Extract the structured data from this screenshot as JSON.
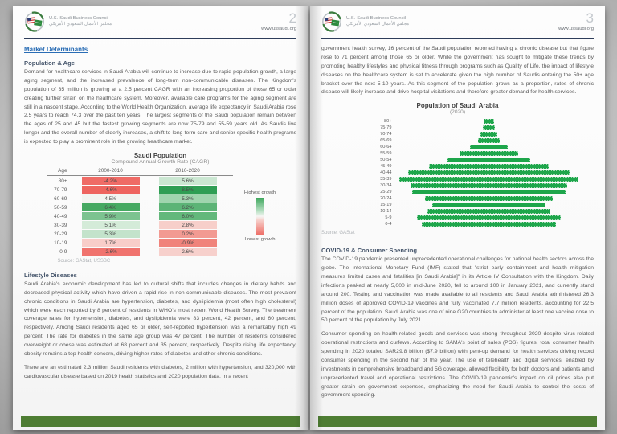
{
  "brand": {
    "org": "U.S.-Saudi Business Council",
    "org_ar": "مجلس الأعمال السعودي الأمريكي",
    "site": "www.ussaudi.org",
    "accent_green": "#4e7d33",
    "accent_navy": "#2e3d5a"
  },
  "page_left": {
    "number": "2",
    "link_heading": "Market Determinants",
    "pop_age": {
      "heading": "Population & Age",
      "body": "Demand for healthcare services in Saudi Arabia will continue to increase due to rapid population growth, a large aging segment, and the increased prevalence of long-term non-communicable diseases. The Kingdom's population of 35 million is growing at a 2.5 percent CAGR with an increasing proportion of those 65 or older creating further strain on the healthcare system. Moreover, available care programs for the aging segment are still in a nascent stage. According to the World Health Organization, average life expectancy in Saudi Arabia rose 2.5 years to reach 74.3 over the past ten years. The largest segments of the Saudi population remain between the ages of 25 and 45 but the fastest growing segments are now 75-79 and 55-59 years old. As Saudis live longer and the overall number of elderly increases, a shift to long-term care and senior-specific health programs is expected to play a prominent role in the growing healthcare market."
    },
    "lifestyle": {
      "heading": "Lifestyle Diseases",
      "body": "Saudi Arabia's economic development has led to cultural shifts that includes changes in dietary habits and decreased physical activity which have driven a rapid rise in non-communicable diseases. The most prevalent chronic conditions in Saudi Arabia are hypertension, diabetes, and dyslipidemia (most often high cholesterol) which were each reported by 8 percent of residents in WHO's most recent World Health Survey. The treatment coverage rates for hypertension, diabetes, and dyslipidemia were 83 percent, 42 percent, and 60 percent, respectively. Among Saudi residents aged 65 or older, self-reported hypertension was a remarkably high 49 percent. The rate for diabetes in the same age group was 47 percent. The number of residents considered overweight or obese was estimated at 68 percent and 35 percent, respectively. Despite rising life expectancy, obesity remains a top health concern, driving higher rates of diabetes and other chronic conditions.",
      "body2": "There are an estimated 2.3 million Saudi residents with diabetes, 2 million with hypertension, and 320,000 with cardiovascular disease based on 2019 health statistics and 2020 population data. In a recent"
    }
  },
  "page_right": {
    "number": "3",
    "cont_body": "government health survey, 16 percent of the Saudi population reported having a chronic disease but that figure rose to 71 percent among those 65 or older. While the government has sought to mitigate these trends by promoting healthy lifestyles and physical fitness through programs such as Quality of Life, the impact of lifestyle diseases on the healthcare system is set to accelerate given the high number of Saudis entering the 50+ age bracket over the next 5-10 years. As this segment of the population grows as a proportion, rates of chronic disease will likely increase and drive hospital visitations and therefore greater demand for health services.",
    "covid": {
      "heading": "COVID-19  & Consumer Spending",
      "body": "The COVID-19 pandemic presented unprecedented operational challenges for national health sectors across the globe. The International Monetary Fund (IMF) stated that \"strict early containment and health mitigation measures limited cases and fatalities [in Saudi Arabia]\" in its Article IV Consultation with the Kingdom. Daily infections peaked at nearly 5,000 in mid-June 2020, fell to around 100 in January 2021, and currently stand around 200. Testing and vaccination was made available to all residents and Saudi Arabia administered 26.3 million doses of approved COVID-19 vaccines and fully vaccinated 7.7 million residents, accounting for 22.5 percent of the population. Saudi Arabia was one of nine G20 countries to administer at least one vaccine dose to 50 percent of the population by July 2021."
    },
    "consumer_body": "Consumer spending on health-related goods and services was strong throughout 2020 despite virus-related operational restrictions and curfews. According to SAMA's point of sales (POS) figures, total consumer health spending in 2020 totaled SAR29.8 billion ($7.9 billion) with pent-up demand for health services driving record consumer spending in the second half of the year. The use of telehealth and digital services, enabled by investments in comprehensive broadband and 5G coverage, allowed flexibility for both doctors and patients amid unprecedented travel and operational restrictions. The COVID-19 pandemic's impact on oil prices also put greater strain on government expenses, emphasizing the need for Saudi Arabia to control the costs of government spending."
  },
  "chart_data": [
    {
      "type": "heatmap",
      "title": "Saudi Population",
      "subtitle": "Compound Annual Growth Rate (CAGR)",
      "columns": [
        "Age",
        "2000-2010",
        "2010-2020"
      ],
      "rows": [
        {
          "age": "80+",
          "v1": "-4.2%",
          "c1": "#ef6b66",
          "v2": "5.6%",
          "c2": "#cbe7d2"
        },
        {
          "age": "70-79",
          "v1": "-4.6%",
          "c1": "#ee655f",
          "v2": "8.5%",
          "c2": "#2f9e54"
        },
        {
          "age": "60-69",
          "v1": "4.5%",
          "c1": "#f2f5f1",
          "v2": "5.3%",
          "c2": "#a0d5ae"
        },
        {
          "age": "50-59",
          "v1": "6.4%",
          "c1": "#45a961",
          "v2": "6.2%",
          "c2": "#5cb476"
        },
        {
          "age": "40-49",
          "v1": "5.9%",
          "c1": "#7cc390",
          "v2": "6.0%",
          "c2": "#63b87b"
        },
        {
          "age": "30-39",
          "v1": "5.1%",
          "c1": "#d4ebd8",
          "v2": "2.8%",
          "c2": "#f7cfca"
        },
        {
          "age": "20-29",
          "v1": "5.3%",
          "c1": "#c3e3cb",
          "v2": "0.2%",
          "c2": "#f29a92"
        },
        {
          "age": "10-19",
          "v1": "1.7%",
          "c1": "#f8cdc9",
          "v2": "-0.9%",
          "c2": "#f0837b"
        },
        {
          "age": "0-9",
          "v1": "-2.6%",
          "c1": "#f0736e",
          "v2": "2.6%",
          "c2": "#f7d0cc"
        }
      ],
      "legend": {
        "high": "Highest growth",
        "low": "Lowest growth"
      },
      "legend_colors": {
        "high": "#3fa75d",
        "mid": "#f6f6f4",
        "low": "#ee6f68"
      },
      "source": "Source: GAStat, USSBC"
    },
    {
      "type": "bar",
      "orientation": "horizontal-pyramid",
      "title": "Population of Saudi Arabia",
      "subtitle": "(2020)",
      "categories": [
        "80+",
        "75-79",
        "70-74",
        "65-69",
        "60-64",
        "55-59",
        "50-54",
        "45-49",
        "40-44",
        "35-39",
        "30-34",
        "25-29",
        "20-24",
        "15-19",
        "10-14",
        "5-9",
        "0-4"
      ],
      "values_relative_pct": [
        6,
        7,
        9,
        12,
        21,
        33,
        46,
        67,
        90,
        100,
        88,
        86,
        71,
        63,
        69,
        80,
        75
      ],
      "bar_color": "#1ea64b",
      "source": "Source: GAStat"
    }
  ]
}
